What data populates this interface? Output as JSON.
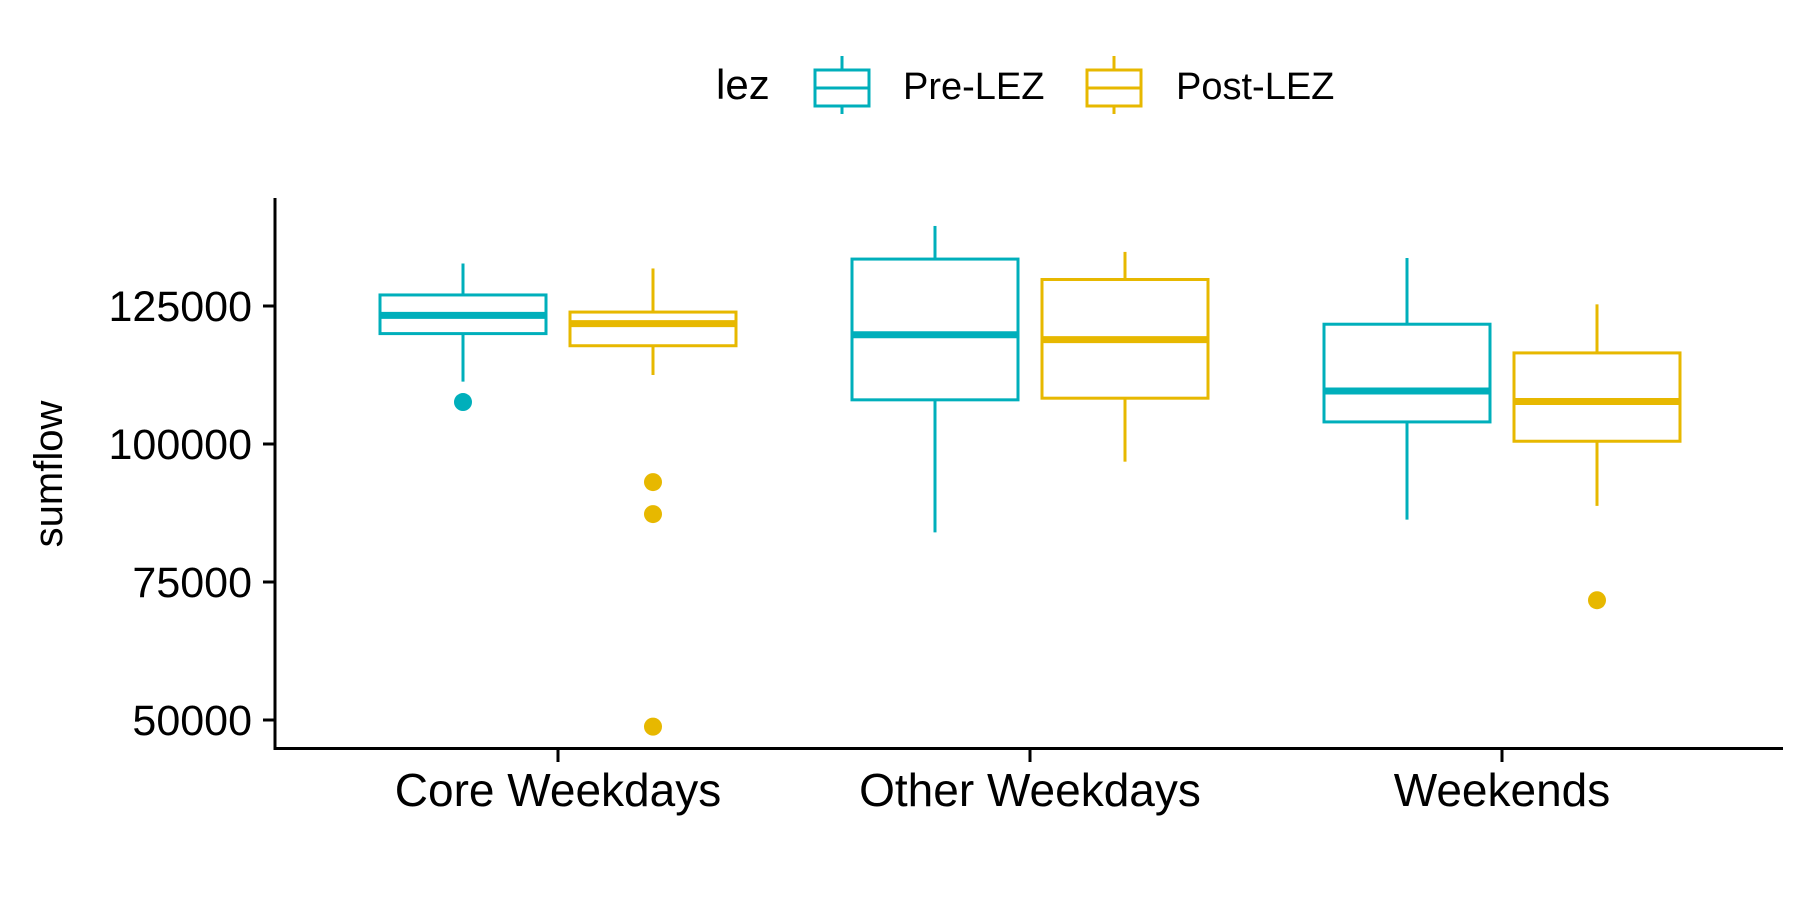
{
  "chart_data": {
    "type": "box",
    "title": "",
    "xlabel": "",
    "ylabel": "sumflow",
    "ylim": [
      44000,
      144000
    ],
    "yticks": [
      50000,
      75000,
      100000,
      125000
    ],
    "ytick_labels": [
      "50000",
      "75000",
      "100000",
      "125000"
    ],
    "categories": [
      "Core Weekdays",
      "Other Weekdays",
      "Weekends"
    ],
    "grid": false,
    "legend": {
      "title": "lez",
      "position": "top",
      "entries": [
        "Pre-LEZ",
        "Post-LEZ"
      ]
    },
    "series": [
      {
        "name": "Pre-LEZ",
        "color": "#00AFBB",
        "boxes": [
          {
            "category": "Core Weekdays",
            "whisker_low": 111300,
            "q1": 120000,
            "median": 123300,
            "q3": 127000,
            "whisker_high": 132700,
            "outliers": [
              107600
            ]
          },
          {
            "category": "Other Weekdays",
            "whisker_low": 84000,
            "q1": 108000,
            "median": 119800,
            "q3": 133500,
            "whisker_high": 139500,
            "outliers": []
          },
          {
            "category": "Weekends",
            "whisker_low": 86300,
            "q1": 104000,
            "median": 109600,
            "q3": 121700,
            "whisker_high": 133700,
            "outliers": []
          }
        ]
      },
      {
        "name": "Post-LEZ",
        "color": "#E7B800",
        "boxes": [
          {
            "category": "Core Weekdays",
            "whisker_low": 112500,
            "q1": 117800,
            "median": 121800,
            "q3": 123900,
            "whisker_high": 131800,
            "outliers": [
              93100,
              87300,
              48800
            ]
          },
          {
            "category": "Other Weekdays",
            "whisker_low": 96800,
            "q1": 108300,
            "median": 118900,
            "q3": 129800,
            "whisker_high": 134800,
            "outliers": []
          },
          {
            "category": "Weekends",
            "whisker_low": 88800,
            "q1": 100500,
            "median": 107700,
            "q3": 116500,
            "whisker_high": 125300,
            "outliers": [
              71700
            ]
          }
        ]
      }
    ]
  }
}
